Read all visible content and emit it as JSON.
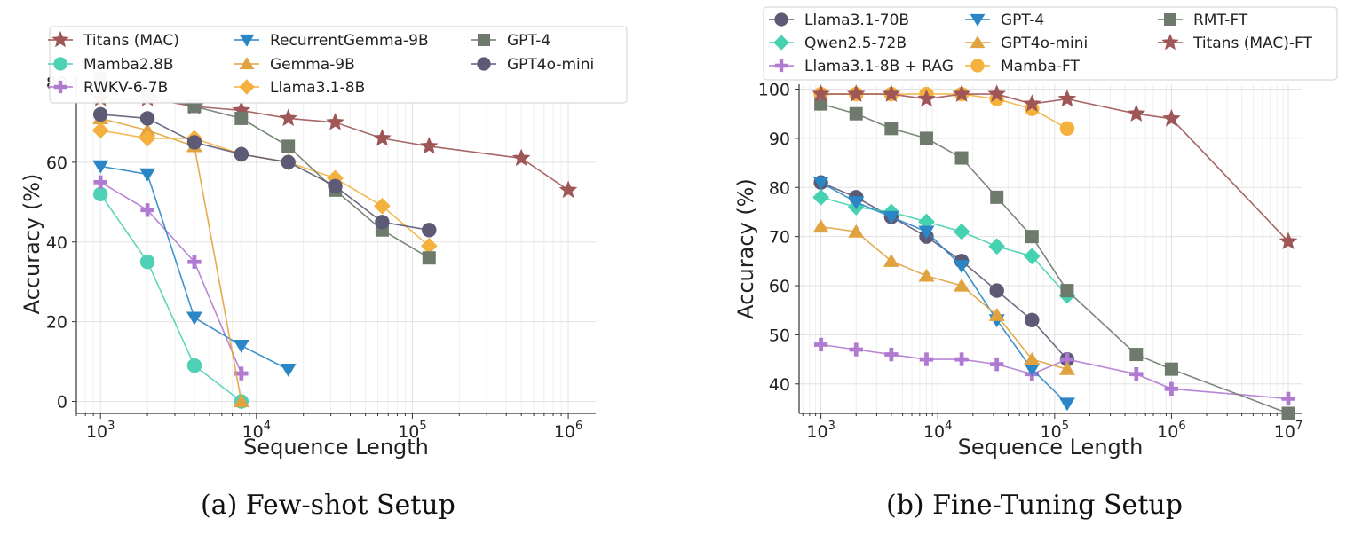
{
  "captions": {
    "a": "(a) Few-shot Setup",
    "b": "(b) Fine-Tuning Setup"
  },
  "colors": {
    "titans": "#9e5656",
    "mamba": "#4fd1b5",
    "rwkv": "#b07ad0",
    "recurrentgemma": "#2b86c6",
    "gemma": "#e0a33f",
    "llama8b": "#f5b13d",
    "gpt4_square": "#6e7b6c",
    "gpt4o_mini_circle": "#5d5a76",
    "qwen": "#46d2b0"
  },
  "chart_data": [
    {
      "id": "few-shot",
      "type": "line",
      "x_scale": "log",
      "xlim": [
        700,
        1500000
      ],
      "ylim": [
        -3,
        82
      ],
      "xlabel": "Sequence Length",
      "ylabel": "Accuracy (%)",
      "x_ticks": [
        {
          "v": 1000,
          "e": "3"
        },
        {
          "v": 10000,
          "e": "4"
        },
        {
          "v": 100000,
          "e": "5"
        },
        {
          "v": 1000000,
          "e": "6"
        }
      ],
      "y_ticks": [
        0,
        20,
        40,
        60,
        80
      ],
      "grid": true,
      "legend_position": "top, 3 columns",
      "series": [
        {
          "name": "Titans (MAC)",
          "color": "#9e5656",
          "marker": "star",
          "x": [
            1000,
            2000,
            4000,
            8000,
            16000,
            32000,
            64000,
            128000,
            500000,
            1000000
          ],
          "y": [
            76,
            76,
            74,
            73,
            71,
            70,
            66,
            64,
            61,
            53
          ]
        },
        {
          "name": "Mamba2.8B",
          "color": "#4fd1b5",
          "marker": "circle",
          "x": [
            1000,
            2000,
            4000,
            8000
          ],
          "y": [
            52,
            35,
            9,
            0
          ]
        },
        {
          "name": "RWKV-6-7B",
          "color": "#b07ad0",
          "marker": "plus",
          "x": [
            1000,
            2000,
            4000,
            8000
          ],
          "y": [
            55,
            48,
            35,
            7
          ]
        },
        {
          "name": "RecurrentGemma-9B",
          "color": "#2b86c6",
          "marker": "tri_down",
          "x": [
            1000,
            2000,
            4000,
            8000,
            16000
          ],
          "y": [
            59,
            57,
            21,
            14,
            8
          ]
        },
        {
          "name": "Gemma-9B",
          "color": "#e0a33f",
          "marker": "tri_up",
          "x": [
            1000,
            2000,
            4000,
            8000
          ],
          "y": [
            71,
            68,
            64,
            0
          ]
        },
        {
          "name": "Llama3.1-8B",
          "color": "#f5b13d",
          "marker": "diamond",
          "x": [
            1000,
            2000,
            4000,
            8000,
            16000,
            32000,
            64000,
            128000
          ],
          "y": [
            68,
            66,
            66,
            62,
            60,
            56,
            49,
            39
          ]
        },
        {
          "name": "GPT-4",
          "color": "#6e7b6c",
          "marker": "square",
          "x": [
            1000,
            2000,
            4000,
            8000,
            16000,
            32000,
            64000,
            128000
          ],
          "y": [
            81,
            77,
            74,
            71,
            64,
            53,
            43,
            36
          ]
        },
        {
          "name": "GPT4o-mini",
          "color": "#5d5a76",
          "marker": "circle",
          "x": [
            1000,
            2000,
            4000,
            8000,
            16000,
            32000,
            64000,
            128000
          ],
          "y": [
            72,
            71,
            65,
            62,
            60,
            54,
            45,
            43
          ]
        }
      ]
    },
    {
      "id": "fine-tuning",
      "type": "line",
      "x_scale": "log",
      "xlim": [
        650,
        13000000
      ],
      "ylim": [
        34,
        101
      ],
      "xlabel": "Sequence Length",
      "ylabel": "Accuracy (%)",
      "x_ticks": [
        {
          "v": 1000,
          "e": "3"
        },
        {
          "v": 10000,
          "e": "4"
        },
        {
          "v": 100000,
          "e": "5"
        },
        {
          "v": 1000000,
          "e": "6"
        },
        {
          "v": 10000000,
          "e": "7"
        }
      ],
      "y_ticks": [
        40,
        50,
        60,
        70,
        80,
        90,
        100
      ],
      "grid": true,
      "legend_position": "top, 3 columns",
      "series": [
        {
          "name": "Llama3.1-70B",
          "color": "#5d5a76",
          "marker": "circle",
          "x": [
            1000,
            2000,
            4000,
            8000,
            16000,
            32000,
            64000,
            128000
          ],
          "y": [
            81,
            78,
            74,
            70,
            65,
            59,
            53,
            45
          ]
        },
        {
          "name": "Qwen2.5-72B",
          "color": "#46d2b0",
          "marker": "diamond",
          "x": [
            1000,
            2000,
            4000,
            8000,
            16000,
            32000,
            64000,
            128000
          ],
          "y": [
            78,
            76,
            75,
            73,
            71,
            68,
            66,
            58
          ]
        },
        {
          "name": "Llama3.1-8B + RAG",
          "color": "#b07ad0",
          "marker": "plus",
          "x": [
            1000,
            2000,
            4000,
            8000,
            16000,
            32000,
            64000,
            128000,
            500000,
            1000000,
            10000000
          ],
          "y": [
            48,
            47,
            46,
            45,
            45,
            44,
            42,
            45,
            42,
            39,
            37
          ]
        },
        {
          "name": "GPT-4",
          "color": "#2b86c6",
          "marker": "tri_down",
          "x": [
            1000,
            2000,
            4000,
            8000,
            16000,
            32000,
            64000,
            128000
          ],
          "y": [
            81,
            77,
            74,
            71,
            64,
            53,
            43,
            36
          ]
        },
        {
          "name": "GPT4o-mini",
          "color": "#e0a33f",
          "marker": "tri_up",
          "x": [
            1000,
            2000,
            4000,
            8000,
            16000,
            32000,
            64000,
            128000
          ],
          "y": [
            72,
            71,
            65,
            62,
            60,
            54,
            45,
            43
          ]
        },
        {
          "name": "Mamba-FT",
          "color": "#f5b13d",
          "marker": "circle",
          "x": [
            1000,
            2000,
            4000,
            8000,
            16000,
            32000,
            64000,
            128000
          ],
          "y": [
            99,
            99,
            99,
            99,
            99,
            98,
            96,
            92
          ]
        },
        {
          "name": "RMT-FT",
          "color": "#6e7b6c",
          "marker": "square",
          "x": [
            1000,
            2000,
            4000,
            8000,
            16000,
            32000,
            64000,
            128000,
            500000,
            1000000,
            10000000
          ],
          "y": [
            97,
            95,
            92,
            90,
            86,
            78,
            70,
            59,
            46,
            43,
            34
          ]
        },
        {
          "name": "Titans (MAC)-FT",
          "color": "#9e5656",
          "marker": "star",
          "x": [
            1000,
            2000,
            4000,
            8000,
            16000,
            32000,
            64000,
            128000,
            500000,
            1000000,
            10000000
          ],
          "y": [
            99,
            99,
            99,
            98,
            99,
            99,
            97,
            98,
            95,
            94,
            69
          ]
        }
      ]
    }
  ]
}
